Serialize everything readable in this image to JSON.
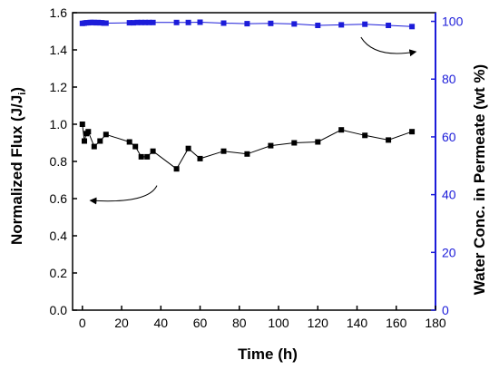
{
  "chart_data": {
    "type": "line",
    "title": "",
    "xlabel": "Time (h)",
    "ylabel_left_main": "Normalized Flux (J/J",
    "ylabel_left_sub": "i",
    "ylabel_left_close": ")",
    "ylabel_right": "Water Conc. in Permeate (wt %)",
    "xlim": [
      -5,
      180
    ],
    "ylim_left": [
      0,
      1.6
    ],
    "ylim_right": [
      0,
      103
    ],
    "x_ticks": [
      0,
      20,
      40,
      60,
      80,
      100,
      120,
      140,
      160,
      180
    ],
    "y_left_ticks": [
      "0.0",
      "0.2",
      "0.4",
      "0.6",
      "0.8",
      "1.0",
      "1.2",
      "1.4",
      "1.6"
    ],
    "y_right_ticks": [
      0,
      20,
      40,
      60,
      80,
      100
    ],
    "colors": {
      "left_axis": "#000000",
      "right_axis": "#1c1cd9",
      "flux": "#000000",
      "water": "#1c1cd9"
    },
    "series": [
      {
        "axis": "left",
        "marker": "square",
        "points": [
          [
            0,
            1.0
          ],
          [
            1,
            0.91
          ],
          [
            2,
            0.95
          ],
          [
            3,
            0.96
          ],
          [
            6,
            0.88
          ],
          [
            9,
            0.91
          ],
          [
            12,
            0.945
          ],
          [
            24,
            0.905
          ],
          [
            27,
            0.88
          ],
          [
            30,
            0.825
          ],
          [
            33,
            0.825
          ],
          [
            36,
            0.855
          ],
          [
            48,
            0.76
          ],
          [
            54,
            0.87
          ],
          [
            60,
            0.815
          ],
          [
            72,
            0.855
          ],
          [
            84,
            0.84
          ],
          [
            96,
            0.885
          ],
          [
            108,
            0.9
          ],
          [
            120,
            0.905
          ],
          [
            132,
            0.97
          ],
          [
            144,
            0.94
          ],
          [
            156,
            0.915
          ],
          [
            168,
            0.96
          ]
        ]
      },
      {
        "axis": "right",
        "marker": "square",
        "points": [
          [
            0,
            99.3
          ],
          [
            1,
            99.4
          ],
          [
            2,
            99.5
          ],
          [
            3,
            99.5
          ],
          [
            4,
            99.6
          ],
          [
            5,
            99.6
          ],
          [
            6,
            99.6
          ],
          [
            7,
            99.5
          ],
          [
            8,
            99.6
          ],
          [
            9,
            99.5
          ],
          [
            10,
            99.5
          ],
          [
            11,
            99.4
          ],
          [
            12,
            99.4
          ],
          [
            24,
            99.5
          ],
          [
            26,
            99.5
          ],
          [
            28,
            99.6
          ],
          [
            30,
            99.6
          ],
          [
            32,
            99.6
          ],
          [
            34,
            99.6
          ],
          [
            36,
            99.6
          ],
          [
            48,
            99.6
          ],
          [
            54,
            99.6
          ],
          [
            60,
            99.7
          ],
          [
            72,
            99.4
          ],
          [
            84,
            99.2
          ],
          [
            96,
            99.3
          ],
          [
            108,
            99.1
          ],
          [
            120,
            98.6
          ],
          [
            132,
            98.8
          ],
          [
            144,
            99.0
          ],
          [
            156,
            98.6
          ],
          [
            168,
            98.2
          ]
        ]
      }
    ],
    "annotations": [
      {
        "type": "arrow",
        "target_axis": "left",
        "from": [
          38,
          0.67
        ],
        "to": [
          4,
          0.59
        ]
      },
      {
        "type": "arrow",
        "target_axis": "right",
        "from": [
          142,
          94.5
        ],
        "to": [
          170,
          89.5
        ]
      }
    ]
  }
}
